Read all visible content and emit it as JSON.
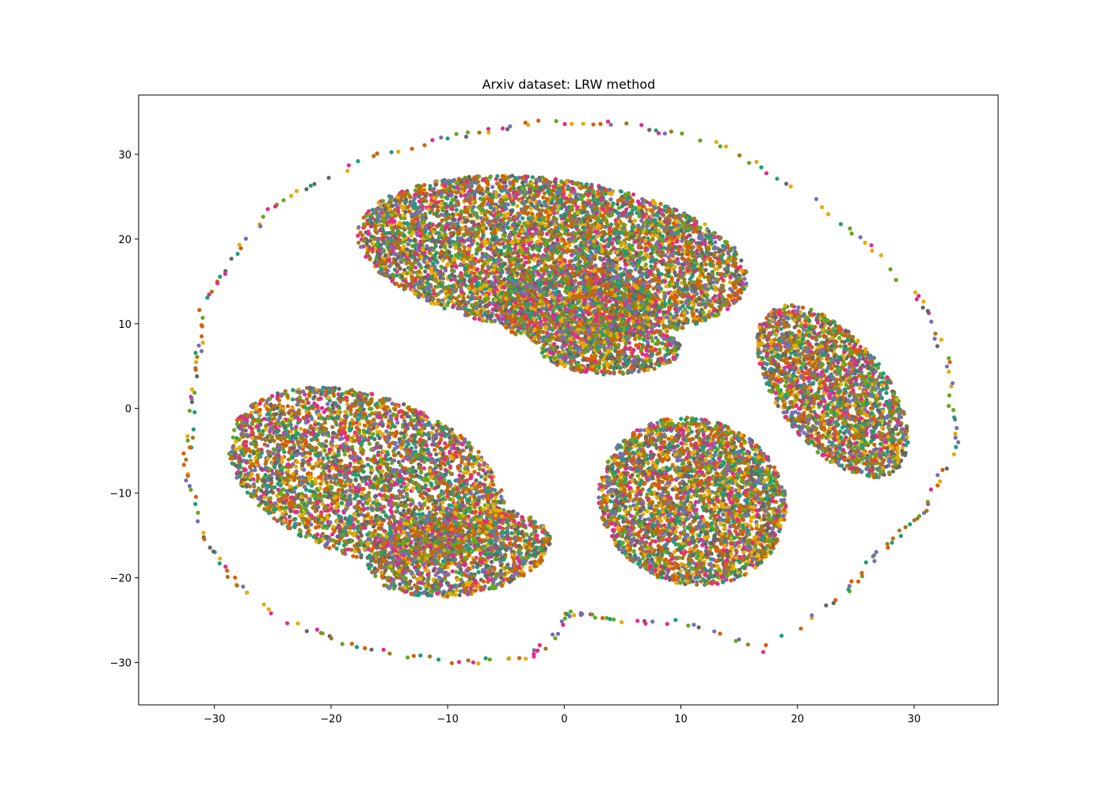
{
  "chart_data": {
    "type": "scatter",
    "title": "Arxiv dataset: LRW method",
    "xlabel": "",
    "ylabel": "",
    "xlim": [
      -36.5,
      37.2
    ],
    "ylim": [
      -35,
      37
    ],
    "xticks": [
      -30,
      -20,
      -10,
      0,
      10,
      20,
      30
    ],
    "yticks": [
      -30,
      -20,
      -10,
      0,
      10,
      20,
      30
    ],
    "grid": false,
    "legend": "none",
    "palette": [
      "#1b9e77",
      "#d95f02",
      "#7570b3",
      "#e7298a",
      "#66a61e",
      "#e6ab02",
      "#a6761d",
      "#666666"
    ],
    "regions": [
      {
        "name": "upper-band",
        "center": [
          -1,
          18
        ],
        "radius": [
          17,
          9
        ],
        "rotation_deg": -12,
        "density": 6000
      },
      {
        "name": "right-lobe",
        "center": [
          23,
          2
        ],
        "radius": [
          5,
          11
        ],
        "rotation_deg": 25,
        "density": 2200
      },
      {
        "name": "left-lobe",
        "center": [
          -17,
          -8
        ],
        "radius": [
          9,
          13
        ],
        "rotation_deg": 55,
        "density": 3600
      },
      {
        "name": "lower-left-pocket",
        "center": [
          -9,
          -17
        ],
        "radius": [
          8,
          5
        ],
        "rotation_deg": 15,
        "density": 1500
      },
      {
        "name": "lower-right-band",
        "center": [
          11,
          -11
        ],
        "radius": [
          8,
          10
        ],
        "rotation_deg": 10,
        "density": 3200
      },
      {
        "name": "center-pink",
        "center": [
          1,
          12
        ],
        "radius": [
          7,
          5
        ],
        "rotation_deg": 0,
        "density": 900
      },
      {
        "name": "center-brown",
        "center": [
          4,
          7
        ],
        "radius": [
          6,
          3
        ],
        "rotation_deg": 0,
        "density": 700
      }
    ],
    "outer_ring": [
      [
        -32.5,
        -7
      ],
      [
        -31,
        -15
      ],
      [
        -28,
        -21
      ],
      [
        -24,
        -25
      ],
      [
        -18,
        -28
      ],
      [
        -10,
        -30
      ],
      [
        -3,
        -29.5
      ],
      [
        -1,
        -27
      ],
      [
        0.5,
        -24
      ],
      [
        4,
        -25
      ],
      [
        10,
        -25.2
      ],
      [
        17,
        -28.5
      ],
      [
        24,
        -22
      ],
      [
        27,
        -17
      ],
      [
        31,
        -12
      ],
      [
        33.5,
        -4
      ],
      [
        33,
        5
      ],
      [
        31,
        12
      ],
      [
        27,
        18
      ],
      [
        21,
        25
      ],
      [
        14,
        31
      ],
      [
        6,
        33.5
      ],
      [
        -2,
        33.8
      ],
      [
        -8,
        32.5
      ],
      [
        -16,
        30
      ],
      [
        -24,
        25
      ],
      [
        -28,
        19
      ],
      [
        -31,
        12
      ],
      [
        -31.5,
        5
      ],
      [
        -32,
        -2
      ]
    ]
  }
}
